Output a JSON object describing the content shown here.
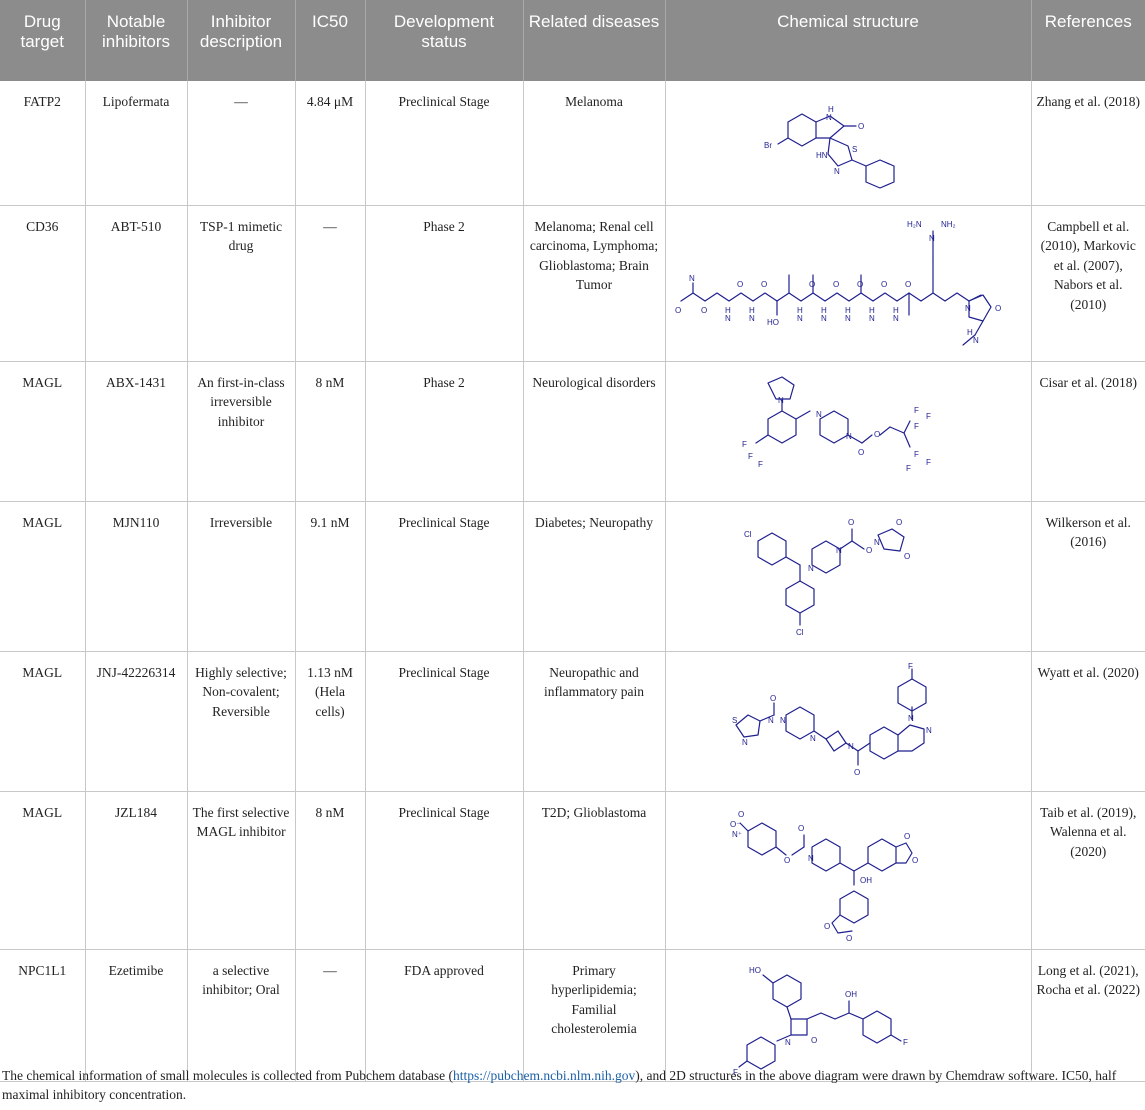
{
  "headers": [
    "Drug target",
    "Notable inhibitors",
    "Inhibitor description",
    "IC50",
    "Development status",
    "Related diseases",
    "Chemical structure",
    "References"
  ],
  "rows": [
    {
      "target": "FATP2",
      "inhibitor": "Lipofermata",
      "description": "—",
      "ic50": "4.84 μM",
      "status": "Preclinical Stage",
      "diseases": "Melanoma",
      "references": "Zhang et al. (2018)"
    },
    {
      "target": "CD36",
      "inhibitor": "ABT-510",
      "description": "TSP-1 mimetic drug",
      "ic50": "—",
      "status": "Phase 2",
      "diseases": "Melanoma; Renal cell carcinoma, Lymphoma; Glioblastoma; Brain Tumor",
      "references": "Campbell et al. (2010), Markovic et al. (2007), Nabors et al. (2010)"
    },
    {
      "target": "MAGL",
      "inhibitor": "ABX-1431",
      "description": "An first-in-class irreversible inhibitor",
      "ic50": "8 nM",
      "status": "Phase 2",
      "diseases": "Neurological disorders",
      "references": "Cisar et al. (2018)"
    },
    {
      "target": "MAGL",
      "inhibitor": "MJN110",
      "description": "Irreversible",
      "ic50": "9.1 nM",
      "status": "Preclinical Stage",
      "diseases": "Diabetes; Neuropathy",
      "references": "Wilkerson et al. (2016)"
    },
    {
      "target": "MAGL",
      "inhibitor": "JNJ-42226314",
      "description": "Highly selective; Non-covalent; Reversible",
      "ic50": "1.13 nM (Hela cells)",
      "status": "Preclinical Stage",
      "diseases": "Neuropathic and inflammatory pain",
      "references": "Wyatt et al. (2020)"
    },
    {
      "target": "MAGL",
      "inhibitor": "JZL184",
      "description": "The first selective MAGL inhibitor",
      "ic50": "8 nM",
      "status": "Preclinical Stage",
      "diseases": "T2D; Glioblastoma",
      "references": "Taib et al. (2019), Walenna et al. (2020)"
    },
    {
      "target": "NPC1L1",
      "inhibitor": "Ezetimibe",
      "description": "a selective inhibitor; Oral",
      "ic50": "—",
      "status": "FDA approved",
      "diseases": "Primary hyperlipidemia; Familial cholesterolemia",
      "references": "Long et al. (2021), Rocha et al. (2022)"
    }
  ],
  "structure_labels": {
    "r0": [
      "H",
      "N",
      "O",
      "Br",
      "HN",
      "N",
      "S"
    ],
    "r1": [
      "H₂N",
      "NH₂",
      "N",
      "N",
      "O",
      "O",
      "H",
      "N",
      "O",
      "H",
      "N",
      "O",
      "H",
      "N",
      "O",
      "H",
      "N",
      "O",
      "H",
      "N",
      "O",
      "H",
      "N",
      "O",
      "H",
      "N",
      "O",
      "HO",
      "N",
      "O",
      "H",
      "N"
    ],
    "r2": [
      "N",
      "F",
      "F",
      "F",
      "N",
      "N",
      "O",
      "O",
      "F",
      "F",
      "F",
      "F",
      "F",
      "F"
    ],
    "r3": [
      "O",
      "Cl",
      "N",
      "N",
      "O",
      "O",
      "N",
      "O",
      "Cl"
    ],
    "r4": [
      "F",
      "O",
      "N",
      "N",
      "S",
      "N",
      "N",
      "N",
      "N",
      "N",
      "O"
    ],
    "r5": [
      "O",
      "O⁻",
      "N⁺",
      "O",
      "O",
      "N",
      "OH",
      "O",
      "O",
      "O",
      "O"
    ],
    "r6": [
      "HO",
      "OH",
      "N",
      "O",
      "F",
      "F"
    ]
  },
  "footnote": {
    "before": "The chemical information of small molecules is collected from Pubchem database (",
    "link": "https://pubchem.ncbi.nlm.nih.gov",
    "after": "), and 2D structures in the above diagram were drawn by Chemdraw software. IC50, half maximal inhibitory concentration."
  },
  "colors": {
    "header_bg": "#8c8c8c",
    "structure_ink": "#1f1f8f",
    "link": "#1a5fa8"
  }
}
